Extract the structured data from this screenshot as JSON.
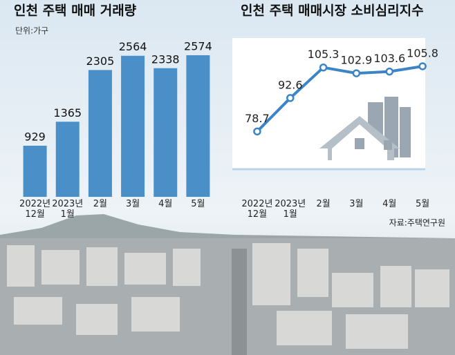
{
  "chart_data": [
    {
      "type": "bar",
      "title": "인천 주택 매매 거래량",
      "subtitle": "단위:가구",
      "categories": [
        "2022년\n12월",
        "2023년\n1월",
        "2월",
        "3월",
        "4월",
        "5월"
      ],
      "values": [
        929,
        1365,
        2305,
        2564,
        2338,
        2574
      ],
      "color": "#4b8fc8",
      "ylim": [
        0,
        2950
      ]
    },
    {
      "type": "line",
      "title": "인천 주택 매매시장 소비심리지수",
      "source": "자료:주택연구원",
      "categories": [
        "2022년\n12월",
        "2023년\n1월",
        "2월",
        "3월",
        "4월",
        "5월"
      ],
      "values": [
        78.7,
        92.6,
        105.3,
        102.9,
        103.6,
        105.8
      ],
      "color": "#3b84c6",
      "ylim": [
        63,
        119
      ]
    }
  ]
}
